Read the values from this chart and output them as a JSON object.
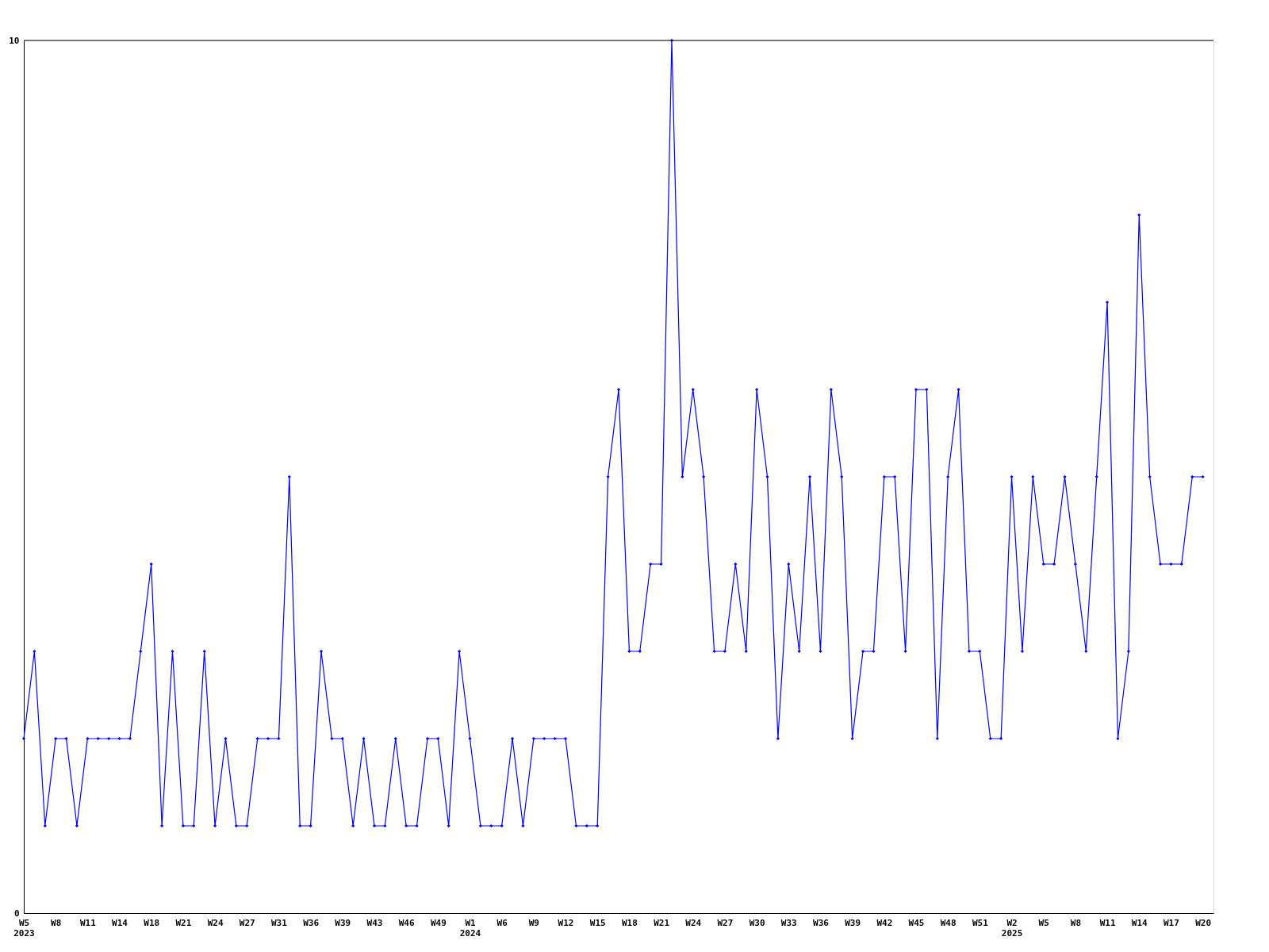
{
  "chart_data": {
    "type": "line",
    "categories": [
      "W5\n2023",
      null,
      null,
      "W8",
      null,
      null,
      "W11",
      null,
      null,
      "W14",
      null,
      null,
      "W18",
      null,
      null,
      "W21",
      null,
      null,
      "W24",
      null,
      null,
      "W27",
      null,
      null,
      "W31",
      null,
      null,
      "W36",
      null,
      null,
      "W39",
      null,
      null,
      "W43",
      null,
      null,
      "W46",
      null,
      null,
      "W49",
      null,
      null,
      "W1\n2024",
      null,
      null,
      "W6",
      null,
      null,
      "W9",
      null,
      null,
      "W12",
      null,
      null,
      "W15",
      null,
      null,
      "W18",
      null,
      null,
      "W21",
      null,
      null,
      "W24",
      null,
      null,
      "W27",
      null,
      null,
      "W30",
      null,
      null,
      "W33",
      null,
      null,
      "W36",
      null,
      null,
      "W39",
      null,
      null,
      "W42",
      null,
      null,
      "W45",
      null,
      null,
      "W48",
      null,
      null,
      "W51",
      null,
      null,
      "W2\n2025",
      null,
      null,
      "W5",
      null,
      null,
      "W8",
      null,
      null,
      "W11",
      null,
      null,
      "W14",
      null,
      null,
      "W17",
      null,
      null,
      "W20"
    ],
    "series": [
      {
        "color": "#0000ff",
        "values": [
          2,
          3,
          1,
          2,
          2,
          1,
          2,
          2,
          2,
          2,
          2,
          3,
          4,
          1,
          3,
          1,
          1,
          3,
          1,
          2,
          1,
          1,
          2,
          2,
          2,
          5,
          1,
          1,
          3,
          2,
          2,
          1,
          2,
          1,
          1,
          2,
          1,
          1,
          2,
          2,
          1,
          3,
          2,
          1,
          1,
          1,
          2,
          1,
          2,
          2,
          2,
          2,
          1,
          1,
          1,
          5,
          6,
          3,
          3,
          4,
          4,
          10,
          5,
          6,
          5,
          3,
          3,
          4,
          3,
          6,
          5,
          2,
          4,
          3,
          5,
          3,
          6,
          5,
          2,
          3,
          3,
          5,
          5,
          3,
          6,
          6,
          2,
          5,
          6,
          3,
          3,
          2,
          2,
          5,
          3,
          5,
          4,
          4,
          5,
          4,
          3,
          5,
          7,
          2,
          3,
          8,
          5,
          4,
          4,
          4,
          5,
          5
        ]
      }
    ],
    "ylim": [
      0,
      10
    ],
    "yticks": [
      0,
      10
    ],
    "marker": "diamond",
    "line_style": "solid"
  }
}
